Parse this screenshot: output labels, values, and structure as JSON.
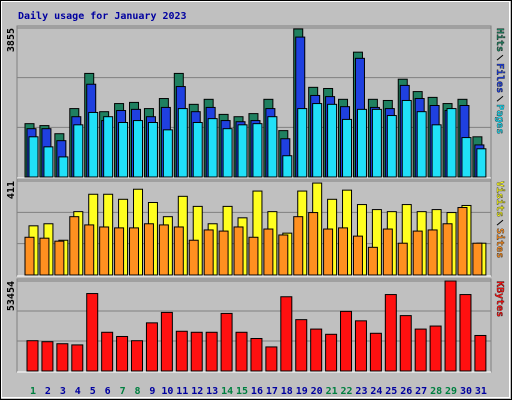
{
  "title": "Daily usage for January 2023",
  "chart_data": [
    {
      "type": "bar",
      "categories": [
        "1",
        "2",
        "3",
        "4",
        "5",
        "6",
        "7",
        "8",
        "9",
        "10",
        "11",
        "12",
        "13",
        "14",
        "15",
        "16",
        "17",
        "18",
        "19",
        "20",
        "21",
        "22",
        "23",
        "24",
        "25",
        "26",
        "27",
        "28",
        "29",
        "30",
        "31"
      ],
      "category_colors": [
        "#008040",
        "#0000a0",
        "#0000a0",
        "#0000a0",
        "#0000a0",
        "#0000a0",
        "#008040",
        "#008040",
        "#0000a0",
        "#0000a0",
        "#0000a0",
        "#0000a0",
        "#0000a0",
        "#008040",
        "#008040",
        "#0000a0",
        "#0000a0",
        "#0000a0",
        "#0000a0",
        "#0000a0",
        "#008040",
        "#008040",
        "#0000a0",
        "#0000a0",
        "#0000a0",
        "#0000a0",
        "#0000a0",
        "#008040",
        "#008040",
        "#0000a0",
        "#0000a0"
      ],
      "ylim": [
        0,
        3855
      ],
      "yticks": [
        3855
      ],
      "grid": true,
      "series": [
        {
          "name": "Hits",
          "color": "#1f8060",
          "values": [
            1380,
            1330,
            1120,
            1770,
            2680,
            1690,
            1900,
            1930,
            1770,
            2030,
            2680,
            1880,
            2010,
            1620,
            1560,
            1640,
            2010,
            1200,
            3830,
            2320,
            2290,
            2010,
            3230,
            2010,
            1980,
            2530,
            2210,
            2060,
            1900,
            2010,
            1040
          ]
        },
        {
          "name": "Files",
          "color": "#1f40e0",
          "values": [
            1250,
            1250,
            940,
            1560,
            2400,
            1460,
            1720,
            1750,
            1560,
            1800,
            2340,
            1690,
            1800,
            1460,
            1430,
            1460,
            1770,
            990,
            3620,
            2110,
            2080,
            1820,
            3070,
            1800,
            1770,
            2370,
            2030,
            1850,
            1720,
            1850,
            830
          ]
        },
        {
          "name": "Pages",
          "color": "#20e0f8",
          "values": [
            1040,
            780,
            520,
            1350,
            1670,
            1560,
            1410,
            1460,
            1410,
            1220,
            1770,
            1410,
            1510,
            1250,
            1350,
            1380,
            1560,
            550,
            1770,
            1900,
            1880,
            1490,
            1750,
            1750,
            1590,
            1980,
            1690,
            1350,
            1770,
            1020,
            730
          ]
        }
      ]
    },
    {
      "type": "bar",
      "ylim": [
        0,
        411
      ],
      "yticks": [
        411
      ],
      "grid": true,
      "series": [
        {
          "name": "Visits",
          "color": "#ffff20",
          "values": [
            215,
            224,
            152,
            277,
            353,
            353,
            331,
            375,
            317,
            255,
            344,
            300,
            224,
            300,
            250,
            367,
            277,
            183,
            367,
            402,
            331,
            371,
            308,
            286,
            277,
            308,
            277,
            286,
            273,
            304,
            139
          ]
        },
        {
          "name": "Sites",
          "color": "#ff9020",
          "values": [
            165,
            161,
            148,
            255,
            219,
            210,
            206,
            206,
            224,
            219,
            210,
            152,
            197,
            192,
            210,
            165,
            201,
            175,
            255,
            273,
            201,
            206,
            170,
            121,
            201,
            139,
            192,
            197,
            224,
            295,
            139
          ]
        }
      ]
    },
    {
      "type": "bar",
      "ylim": [
        0,
        53454
      ],
      "yticks": [
        53454
      ],
      "grid": true,
      "series": [
        {
          "name": "KBytes",
          "color": "#ff1010",
          "values": [
            18000,
            17400,
            16200,
            15500,
            46000,
            23000,
            20500,
            18000,
            28600,
            34800,
            23600,
            23000,
            23000,
            34200,
            23000,
            19300,
            14300,
            44100,
            30500,
            24900,
            21800,
            35400,
            29800,
            22400,
            45400,
            32900,
            24900,
            26700,
            53454,
            45400,
            21100
          ]
        }
      ]
    }
  ]
}
